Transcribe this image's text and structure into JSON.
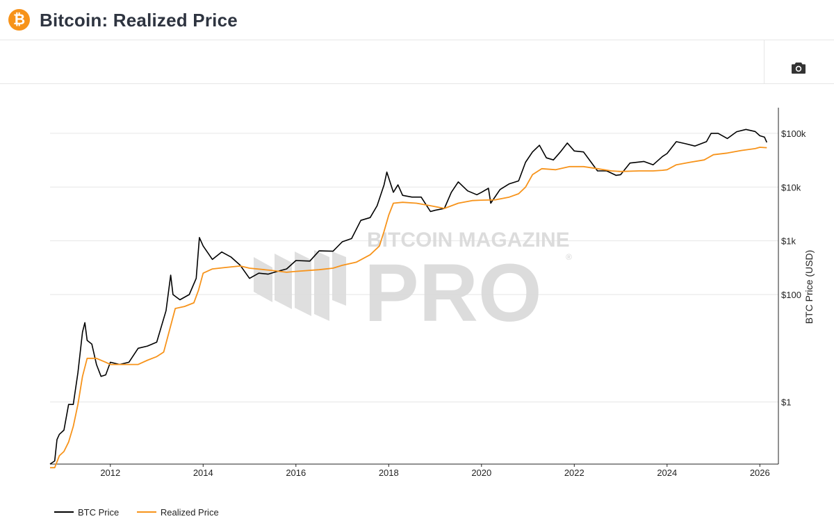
{
  "header": {
    "logo_glyph": "₿",
    "title": "Bitcoin: Realized Price"
  },
  "toolbar": {
    "camera_icon": "camera-icon"
  },
  "watermark": {
    "line1": "BITCOIN MAGAZINE",
    "line2": "PRO",
    "mark": "®"
  },
  "colors": {
    "btc_price": "#000000",
    "realized_price": "#f7931a",
    "gridline": "#e6e6e6",
    "brand": "#f7931a"
  },
  "chart_data": {
    "type": "line",
    "title": "Bitcoin: Realized Price",
    "xlabel": "",
    "ylabel": "BTC Price (USD)",
    "yscale": "log",
    "xlim": [
      2010.7,
      2026.4
    ],
    "ylim": [
      0.07,
      300000
    ],
    "x_ticks": [
      {
        "value": 2012,
        "label": "2012"
      },
      {
        "value": 2014,
        "label": "2014"
      },
      {
        "value": 2016,
        "label": "2016"
      },
      {
        "value": 2018,
        "label": "2018"
      },
      {
        "value": 2020,
        "label": "2020"
      },
      {
        "value": 2022,
        "label": "2022"
      },
      {
        "value": 2024,
        "label": "2024"
      },
      {
        "value": 2026,
        "label": "2026"
      }
    ],
    "y_ticks": [
      {
        "value": 1,
        "label": "$1"
      },
      {
        "value": 100,
        "label": "$100"
      },
      {
        "value": 1000,
        "label": "$1k"
      },
      {
        "value": 10000,
        "label": "$10k"
      },
      {
        "value": 100000,
        "label": "$100k"
      }
    ],
    "grid": true,
    "legend_position": "bottom-left",
    "series": [
      {
        "name": "BTC Price",
        "color": "#000000",
        "points": [
          [
            2010.7,
            0.07
          ],
          [
            2010.8,
            0.08
          ],
          [
            2010.85,
            0.2
          ],
          [
            2010.9,
            0.25
          ],
          [
            2011.0,
            0.3
          ],
          [
            2011.1,
            0.9
          ],
          [
            2011.2,
            0.9
          ],
          [
            2011.3,
            3.5
          ],
          [
            2011.4,
            20
          ],
          [
            2011.45,
            30
          ],
          [
            2011.5,
            14
          ],
          [
            2011.6,
            12
          ],
          [
            2011.7,
            5
          ],
          [
            2011.8,
            3
          ],
          [
            2011.9,
            3.2
          ],
          [
            2012.0,
            5.5
          ],
          [
            2012.2,
            5
          ],
          [
            2012.4,
            5.5
          ],
          [
            2012.6,
            10
          ],
          [
            2012.8,
            11
          ],
          [
            2013.0,
            13
          ],
          [
            2013.2,
            50
          ],
          [
            2013.3,
            230
          ],
          [
            2013.35,
            100
          ],
          [
            2013.5,
            80
          ],
          [
            2013.7,
            100
          ],
          [
            2013.85,
            200
          ],
          [
            2013.92,
            1150
          ],
          [
            2014.0,
            800
          ],
          [
            2014.1,
            600
          ],
          [
            2014.2,
            450
          ],
          [
            2014.4,
            620
          ],
          [
            2014.6,
            500
          ],
          [
            2014.8,
            350
          ],
          [
            2015.0,
            200
          ],
          [
            2015.2,
            250
          ],
          [
            2015.4,
            240
          ],
          [
            2015.6,
            270
          ],
          [
            2015.8,
            300
          ],
          [
            2016.0,
            430
          ],
          [
            2016.3,
            420
          ],
          [
            2016.5,
            650
          ],
          [
            2016.8,
            640
          ],
          [
            2017.0,
            960
          ],
          [
            2017.2,
            1100
          ],
          [
            2017.4,
            2400
          ],
          [
            2017.6,
            2700
          ],
          [
            2017.75,
            4500
          ],
          [
            2017.9,
            11000
          ],
          [
            2017.96,
            19000
          ],
          [
            2018.1,
            8000
          ],
          [
            2018.2,
            11000
          ],
          [
            2018.3,
            7000
          ],
          [
            2018.5,
            6500
          ],
          [
            2018.7,
            6500
          ],
          [
            2018.9,
            3500
          ],
          [
            2019.0,
            3700
          ],
          [
            2019.2,
            4000
          ],
          [
            2019.35,
            8000
          ],
          [
            2019.5,
            12500
          ],
          [
            2019.7,
            8500
          ],
          [
            2019.9,
            7200
          ],
          [
            2020.0,
            8000
          ],
          [
            2020.15,
            9500
          ],
          [
            2020.2,
            5000
          ],
          [
            2020.4,
            9000
          ],
          [
            2020.6,
            11500
          ],
          [
            2020.8,
            13000
          ],
          [
            2020.95,
            29000
          ],
          [
            2021.1,
            45000
          ],
          [
            2021.25,
            60000
          ],
          [
            2021.4,
            35000
          ],
          [
            2021.55,
            32000
          ],
          [
            2021.7,
            45000
          ],
          [
            2021.85,
            66000
          ],
          [
            2022.0,
            47000
          ],
          [
            2022.2,
            45000
          ],
          [
            2022.35,
            30000
          ],
          [
            2022.5,
            20000
          ],
          [
            2022.7,
            20000
          ],
          [
            2022.9,
            16500
          ],
          [
            2023.0,
            17000
          ],
          [
            2023.2,
            28000
          ],
          [
            2023.5,
            30000
          ],
          [
            2023.7,
            26000
          ],
          [
            2023.9,
            37000
          ],
          [
            2024.0,
            42000
          ],
          [
            2024.2,
            70000
          ],
          [
            2024.4,
            64000
          ],
          [
            2024.6,
            58000
          ],
          [
            2024.85,
            70000
          ],
          [
            2024.95,
            100000
          ],
          [
            2025.1,
            100000
          ],
          [
            2025.3,
            80000
          ],
          [
            2025.5,
            107000
          ],
          [
            2025.7,
            118000
          ],
          [
            2025.9,
            108000
          ],
          [
            2026.0,
            90000
          ],
          [
            2026.1,
            85000
          ],
          [
            2026.15,
            68000
          ]
        ]
      },
      {
        "name": "Realized Price",
        "color": "#f7931a",
        "points": [
          [
            2010.7,
            0.06
          ],
          [
            2010.8,
            0.06
          ],
          [
            2010.9,
            0.1
          ],
          [
            2011.0,
            0.12
          ],
          [
            2011.1,
            0.18
          ],
          [
            2011.2,
            0.35
          ],
          [
            2011.3,
            0.9
          ],
          [
            2011.4,
            3
          ],
          [
            2011.5,
            6.5
          ],
          [
            2011.7,
            6.5
          ],
          [
            2011.9,
            5.5
          ],
          [
            2012.0,
            5
          ],
          [
            2012.4,
            5
          ],
          [
            2012.6,
            5
          ],
          [
            2012.8,
            6
          ],
          [
            2013.0,
            7
          ],
          [
            2013.15,
            8.5
          ],
          [
            2013.25,
            18
          ],
          [
            2013.4,
            55
          ],
          [
            2013.6,
            60
          ],
          [
            2013.8,
            70
          ],
          [
            2013.9,
            120
          ],
          [
            2014.0,
            250
          ],
          [
            2014.2,
            300
          ],
          [
            2014.5,
            320
          ],
          [
            2014.8,
            340
          ],
          [
            2015.0,
            310
          ],
          [
            2015.5,
            280
          ],
          [
            2015.8,
            260
          ],
          [
            2016.0,
            270
          ],
          [
            2016.5,
            290
          ],
          [
            2016.8,
            310
          ],
          [
            2017.0,
            350
          ],
          [
            2017.3,
            400
          ],
          [
            2017.6,
            550
          ],
          [
            2017.8,
            800
          ],
          [
            2017.9,
            1500
          ],
          [
            2018.0,
            3000
          ],
          [
            2018.1,
            5000
          ],
          [
            2018.3,
            5200
          ],
          [
            2018.6,
            5000
          ],
          [
            2018.9,
            4500
          ],
          [
            2019.2,
            4000
          ],
          [
            2019.5,
            5000
          ],
          [
            2019.8,
            5600
          ],
          [
            2020.0,
            5700
          ],
          [
            2020.3,
            5800
          ],
          [
            2020.6,
            6500
          ],
          [
            2020.8,
            7500
          ],
          [
            2020.95,
            10000
          ],
          [
            2021.1,
            17000
          ],
          [
            2021.3,
            22000
          ],
          [
            2021.6,
            21000
          ],
          [
            2021.9,
            24000
          ],
          [
            2022.2,
            24000
          ],
          [
            2022.5,
            22000
          ],
          [
            2022.8,
            20000
          ],
          [
            2023.0,
            19500
          ],
          [
            2023.4,
            20000
          ],
          [
            2023.7,
            20000
          ],
          [
            2023.9,
            20500
          ],
          [
            2024.0,
            21000
          ],
          [
            2024.2,
            26000
          ],
          [
            2024.5,
            29000
          ],
          [
            2024.8,
            32000
          ],
          [
            2025.0,
            40000
          ],
          [
            2025.3,
            43000
          ],
          [
            2025.6,
            48000
          ],
          [
            2025.9,
            52000
          ],
          [
            2026.0,
            55000
          ],
          [
            2026.15,
            54000
          ]
        ]
      }
    ]
  }
}
